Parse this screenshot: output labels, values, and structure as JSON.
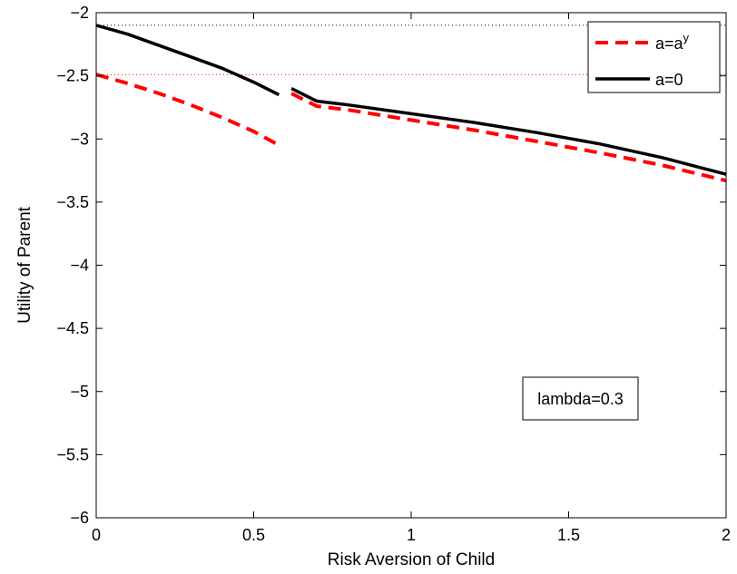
{
  "chart_data": {
    "type": "line",
    "title": "",
    "xlabel": "Risk Aversion of Child",
    "ylabel": "Utility of Parent",
    "xlim": [
      0,
      2
    ],
    "ylim": [
      -6,
      -2
    ],
    "xticks": [
      0,
      0.5,
      1,
      1.5,
      2
    ],
    "xtick_labels": [
      "0",
      "0.5",
      "1",
      "1.5",
      "2"
    ],
    "yticks": [
      -6,
      -5.5,
      -5,
      -4.5,
      -4,
      -3.5,
      -3,
      -2.5,
      -2
    ],
    "ytick_labels": [
      "−6",
      "−5.5",
      "−5",
      "−4.5",
      "−4",
      "−3.5",
      "−3",
      "−2.5",
      "−2"
    ],
    "grid": false,
    "legend_position": "top-right",
    "annotation": "lambda=0.3",
    "reference_lines": [
      {
        "y": -2.1,
        "color": "#000000",
        "style": "dotted"
      },
      {
        "y": -2.49,
        "color": "#ff0000",
        "style": "dotted"
      }
    ],
    "series": [
      {
        "name": "a=a",
        "name_superscript": "y",
        "color": "#ff0000",
        "style": "dashed",
        "segments": [
          [
            [
              0.0,
              -2.49
            ],
            [
              0.1,
              -2.56
            ],
            [
              0.2,
              -2.64
            ],
            [
              0.3,
              -2.73
            ],
            [
              0.4,
              -2.83
            ],
            [
              0.5,
              -2.94
            ],
            [
              0.58,
              -3.05
            ]
          ],
          [
            [
              0.62,
              -2.64
            ],
            [
              0.7,
              -2.74
            ],
            [
              0.8,
              -2.77
            ],
            [
              1.0,
              -2.85
            ],
            [
              1.2,
              -2.93
            ],
            [
              1.4,
              -3.02
            ],
            [
              1.6,
              -3.11
            ],
            [
              1.8,
              -3.21
            ],
            [
              2.0,
              -3.33
            ]
          ]
        ]
      },
      {
        "name": "a=0",
        "color": "#000000",
        "style": "solid",
        "segments": [
          [
            [
              0.0,
              -2.1
            ],
            [
              0.1,
              -2.17
            ],
            [
              0.2,
              -2.26
            ],
            [
              0.3,
              -2.35
            ],
            [
              0.4,
              -2.44
            ],
            [
              0.5,
              -2.55
            ],
            [
              0.58,
              -2.65
            ]
          ],
          [
            [
              0.62,
              -2.6
            ],
            [
              0.7,
              -2.7
            ],
            [
              0.8,
              -2.73
            ],
            [
              1.0,
              -2.8
            ],
            [
              1.2,
              -2.87
            ],
            [
              1.4,
              -2.95
            ],
            [
              1.6,
              -3.04
            ],
            [
              1.8,
              -3.15
            ],
            [
              2.0,
              -3.28
            ]
          ]
        ]
      }
    ]
  }
}
